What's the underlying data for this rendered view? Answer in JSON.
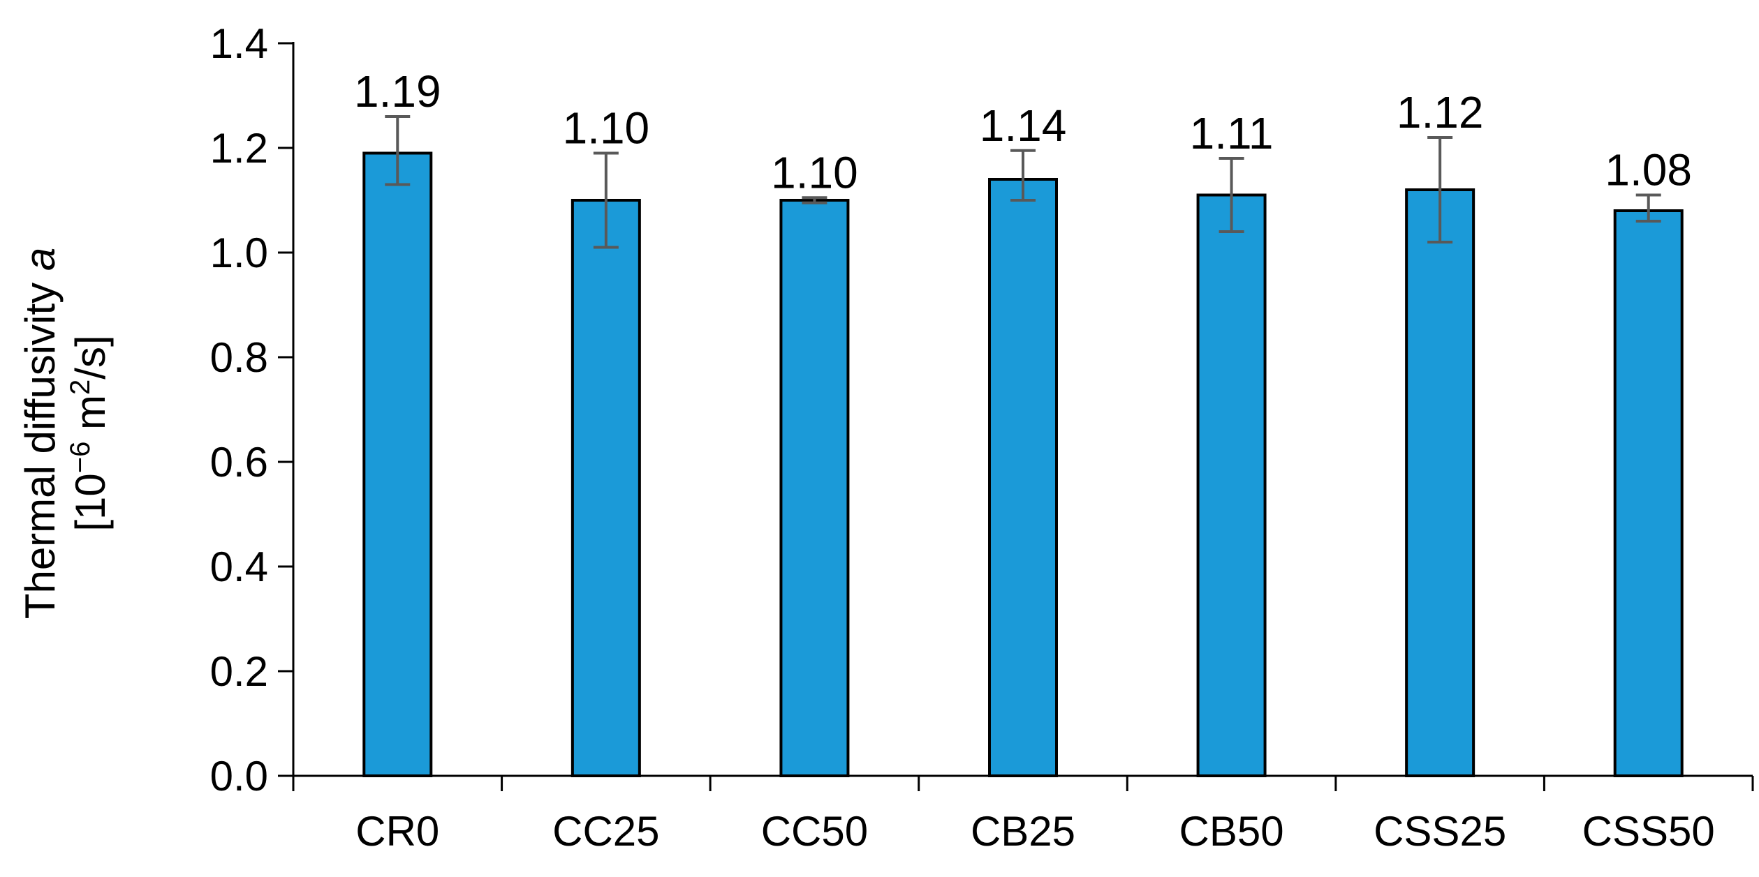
{
  "chart_data": {
    "type": "bar",
    "categories": [
      "CR0",
      "CC25",
      "CC50",
      "CB25",
      "CB50",
      "CSS25",
      "CSS50"
    ],
    "values": [
      1.19,
      1.1,
      1.1,
      1.14,
      1.11,
      1.12,
      1.08
    ],
    "data_labels": [
      "1.19",
      "1.10",
      "1.10",
      "1.14",
      "1.11",
      "1.12",
      "1.08"
    ],
    "error_bars": [
      {
        "low": 1.13,
        "high": 1.26
      },
      {
        "low": 1.01,
        "high": 1.19
      },
      {
        "low": 1.095,
        "high": 1.105
      },
      {
        "low": 1.1,
        "high": 1.195
      },
      {
        "low": 1.04,
        "high": 1.18
      },
      {
        "low": 1.02,
        "high": 1.22
      },
      {
        "low": 1.06,
        "high": 1.11
      }
    ],
    "title": "",
    "xlabel": "",
    "ylabel": {
      "line1_prefix": "Thermal diffusivity ",
      "line1_symbol": "a",
      "line2_open": "[10",
      "line2_exp": "−6",
      "line2_unit": " m",
      "line2_exp2": "2",
      "line2_close": "/s]"
    },
    "y_tick_labels": [
      "0.0",
      "0.2",
      "0.4",
      "0.6",
      "0.8",
      "1.0",
      "1.2",
      "1.4"
    ],
    "y_ticks": [
      0.0,
      0.2,
      0.4,
      0.6,
      0.8,
      1.0,
      1.2,
      1.4
    ],
    "ylim": [
      0.0,
      1.4
    ],
    "grid": false,
    "legend": "none",
    "colors": {
      "bar_fill": "#1b9ad8",
      "bar_edge": "#000000",
      "error_bar": "#595959",
      "axis": "#000000"
    }
  }
}
